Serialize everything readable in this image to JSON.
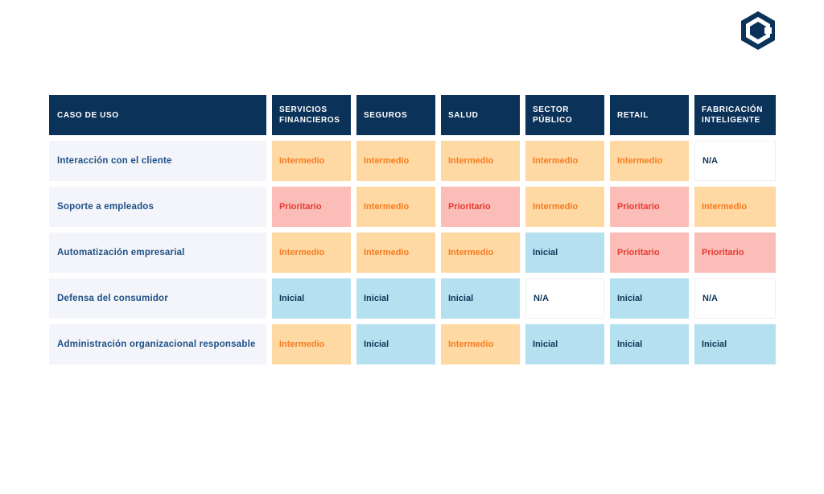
{
  "colors": {
    "header_bg": "#0b3259",
    "intermedio": "#ffd9a3",
    "prioritario": "#fbbdb7",
    "inicial": "#b5e0f0",
    "na": "#ffffff",
    "logo": "#0b3259"
  },
  "logo": {
    "icon": "hexagon-logo-icon"
  },
  "table": {
    "headers": [
      "CASO DE USO",
      "SERVICIOS FINANCIEROS",
      "SEGUROS",
      "SALUD",
      "SECTOR PÚBLICO",
      "RETAIL",
      "FABRICACIÓN INTELIGENTE"
    ],
    "rows": [
      {
        "label": "Interacción con el cliente",
        "cells": [
          "Intermedio",
          "Intermedio",
          "Intermedio",
          "Intermedio",
          "Intermedio",
          "N/A"
        ]
      },
      {
        "label": "Soporte a empleados",
        "cells": [
          "Prioritario",
          "Intermedio",
          "Prioritario",
          "Intermedio",
          "Prioritario",
          "Intermedio"
        ]
      },
      {
        "label": "Automatización empresarial",
        "cells": [
          "Intermedio",
          "Intermedio",
          "Intermedio",
          "Inicial",
          "Prioritario",
          "Prioritario"
        ]
      },
      {
        "label": "Defensa del consumidor",
        "cells": [
          "Inicial",
          "Inicial",
          "Inicial",
          "N/A",
          "Inicial",
          "N/A"
        ]
      },
      {
        "label": "Administración organizacional responsable",
        "cells": [
          "Intermedio",
          "Inicial",
          "Intermedio",
          "Inicial",
          "Inicial",
          "Inicial"
        ]
      }
    ]
  }
}
